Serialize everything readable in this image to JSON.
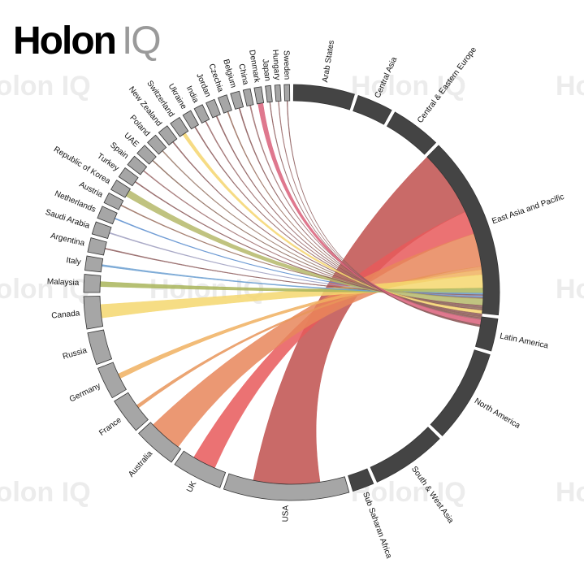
{
  "logo": {
    "main": "Holon",
    "suffix": "IQ"
  },
  "watermark": "Holon IQ",
  "chart_data": {
    "type": "chord",
    "region_color": "#444444",
    "country_color": "#a6a6a6",
    "source_region": 3,
    "regions": [
      {
        "name": "Arab States",
        "value": 17
      },
      {
        "name": "Central Asia",
        "value": 10
      },
      {
        "name": "Central & Eastern Europe",
        "value": 14
      },
      {
        "name": "East Asia and Pacific",
        "value": 51
      },
      {
        "name": "Latin America",
        "value": 9
      },
      {
        "name": "North America",
        "value": 26
      },
      {
        "name": "South & West Asia",
        "value": 21
      },
      {
        "name": "Sub Saharan Africa",
        "value": 6
      }
    ],
    "countries": [
      {
        "name": "USA",
        "value": 35,
        "flow": 20,
        "flow_color": "#c0504d"
      },
      {
        "name": "UK",
        "value": 14,
        "flow": 7,
        "flow_color": "#e8595a"
      },
      {
        "name": "Australia",
        "value": 12,
        "flow": 10,
        "flow_color": "#e8865a"
      },
      {
        "name": "France",
        "value": 10,
        "flow": 1,
        "flow_color": "#e8955a"
      },
      {
        "name": "Germany",
        "value": 9,
        "flow": 1.5,
        "flow_color": "#f0b060"
      },
      {
        "name": "Russia",
        "value": 9
      },
      {
        "name": "Canada",
        "value": 9,
        "flow": 4,
        "flow_color": "#f5d76e"
      },
      {
        "name": "Malaysia",
        "value": 5,
        "flow": 1.5,
        "flow_color": "#a9b55a"
      },
      {
        "name": "Italy",
        "value": 4,
        "flow": 0.5,
        "flow_color": "#6a9ed0"
      },
      {
        "name": "Argentina",
        "value": 4,
        "flow": 0.3,
        "flow_color": "#8c5a5a"
      },
      {
        "name": "Saudi Arabia",
        "value": 3.5,
        "flow": 0.3,
        "flow_color": "#a0a0c0"
      },
      {
        "name": "Netherlands",
        "value": 3.5,
        "flow": 0.3,
        "flow_color": "#5d8fcf"
      },
      {
        "name": "Austria",
        "value": 3,
        "flow": 0.3,
        "flow_color": "#9a7060"
      },
      {
        "name": "Republic of Korea",
        "value": 3,
        "flow": 2,
        "flow_color": "#b5b86a"
      },
      {
        "name": "Turkey",
        "value": 3,
        "flow": 0.3,
        "flow_color": "#8c5a5a"
      },
      {
        "name": "Spain",
        "value": 3,
        "flow": 0.3,
        "flow_color": "#a07070"
      },
      {
        "name": "UAE",
        "value": 3,
        "flow": 0.3,
        "flow_color": "#8c6a5a"
      },
      {
        "name": "Poland",
        "value": 3,
        "flow": 0.3,
        "flow_color": "#9a7a6a"
      },
      {
        "name": "New Zealand",
        "value": 3,
        "flow": 0.3,
        "flow_color": "#8c5a5a"
      },
      {
        "name": "Switzerland",
        "value": 3,
        "flow": 1,
        "flow_color": "#f5d56e"
      },
      {
        "name": "Ukraine",
        "value": 2.5,
        "flow": 0.3,
        "flow_color": "#8c5a5a"
      },
      {
        "name": "India",
        "value": 2.5,
        "flow": 0.3,
        "flow_color": "#9a6a6a"
      },
      {
        "name": "Jordan",
        "value": 2.5,
        "flow": 0.3,
        "flow_color": "#8c5a5a"
      },
      {
        "name": "Czechia",
        "value": 2.5,
        "flow": 0.3,
        "flow_color": "#9a7060"
      },
      {
        "name": "Belgium",
        "value": 2.5,
        "flow": 0.3,
        "flow_color": "#8c5a5a"
      },
      {
        "name": "China",
        "value": 2,
        "flow": 0.3,
        "flow_color": "#a07070"
      },
      {
        "name": "Denmark",
        "value": 2,
        "flow": 1.5,
        "flow_color": "#d9607a"
      },
      {
        "name": "Japan",
        "value": 1.5,
        "flow": 0.2,
        "flow_color": "#8c5a5a"
      },
      {
        "name": "Hungary",
        "value": 1.5,
        "flow": 0.2,
        "flow_color": "#9a6a6a"
      },
      {
        "name": "Sweden",
        "value": 1.5,
        "flow": 0.2,
        "flow_color": "#8c5a5a"
      }
    ]
  }
}
